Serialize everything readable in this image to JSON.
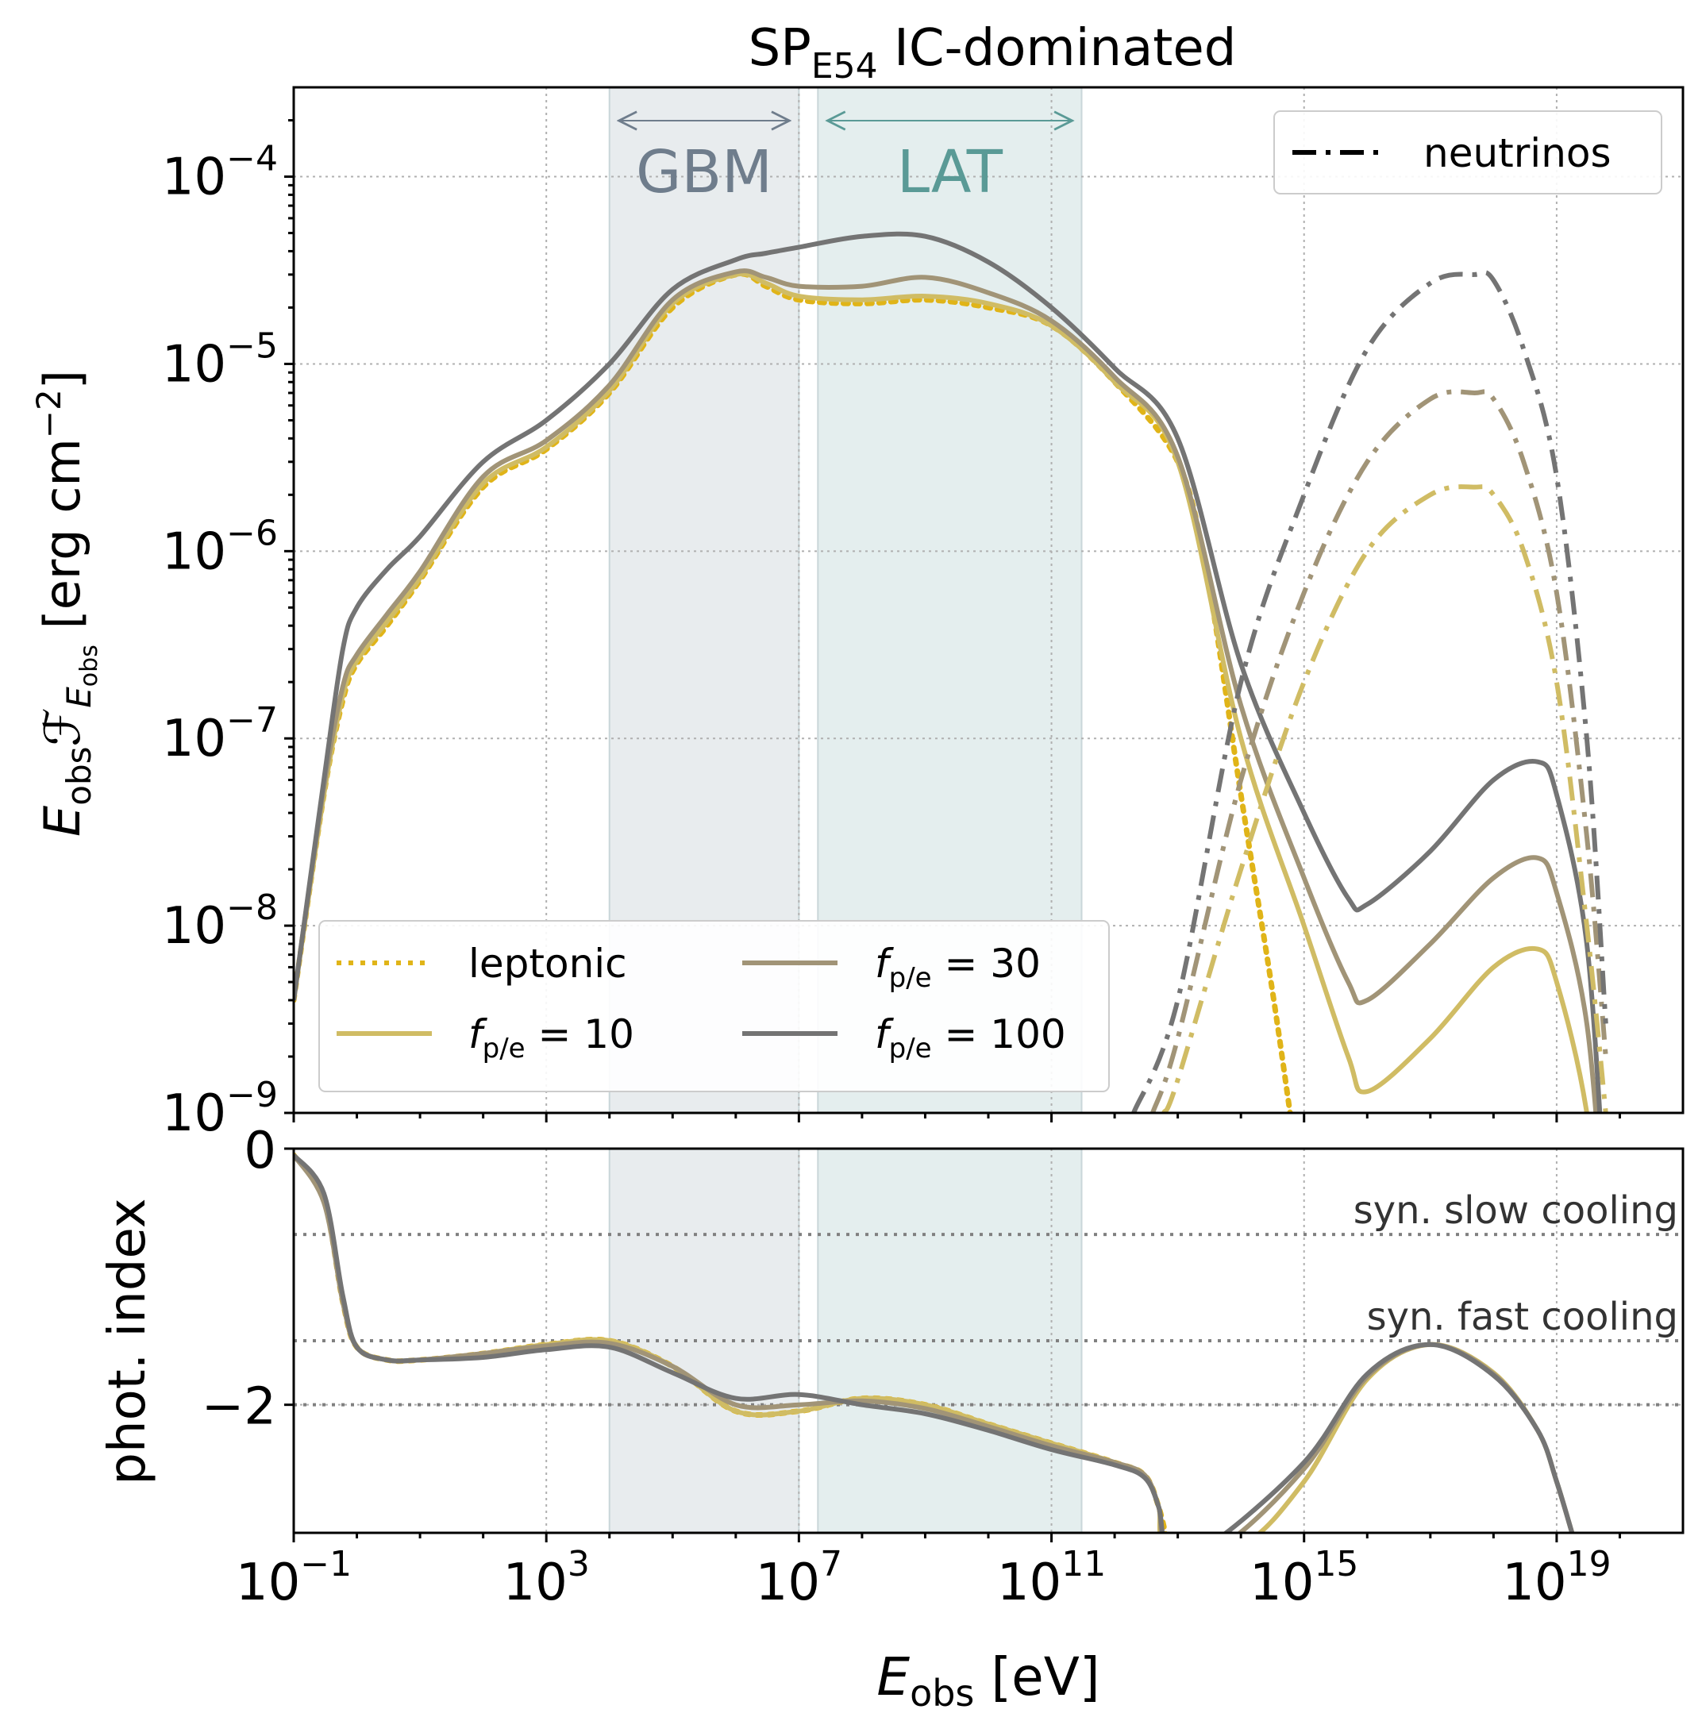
{
  "figure": {
    "title_main": "SP",
    "title_sub": "E54",
    "title_rest": " IC-dominated",
    "top_ylabel_var": "E",
    "top_ylabel_sub": "obs",
    "top_ylabel_var2": "ℱ",
    "top_ylabel_sub2": "E",
    "top_ylabel_sub3": "obs",
    "top_ylabel_units": " [erg cm",
    "top_ylabel_units_exp": "−2",
    "top_ylabel_units_close": "]",
    "bottom_ylabel": "phot. index",
    "xlabel_var": "E",
    "xlabel_sub": "obs",
    "xlabel_units": " [eV]",
    "band_gbm_label": "GBM",
    "band_lat_label": "LAT",
    "ref_slow_label": "syn. slow cooling",
    "ref_fast_label": "syn. fast cooling",
    "legend_neutrinos": "neutrinos",
    "legend_leptonic": "leptonic",
    "legend_fpe_prefix": "f",
    "legend_fpe_sub": "p/e",
    "legend_fpe10": " = 10",
    "legend_fpe30": " = 30",
    "legend_fpe100": " = 100",
    "colors": {
      "leptonic": "#e0b418",
      "fpe10": "#d0bc64",
      "fpe30": "#a19477",
      "fpe100": "#747474",
      "gbm_band": "#e8ecee",
      "lat_band": "#e4eeee",
      "gbm_text": "#6f7d8c",
      "lat_text": "#5a9a96"
    }
  },
  "chart_data": [
    {
      "type": "line",
      "panel": "top",
      "xscale": "log",
      "yscale": "log",
      "xlim": [
        0.1,
        1e+21
      ],
      "ylim": [
        1e-09,
        0.0003
      ],
      "grid": true,
      "legend_placement": [
        "lower-left",
        "top-right"
      ],
      "x_ticks": [
        {
          "base": "10",
          "exp": "−1"
        },
        {
          "base": "10",
          "exp": "3"
        },
        {
          "base": "10",
          "exp": "7"
        },
        {
          "base": "10",
          "exp": "11"
        },
        {
          "base": "10",
          "exp": "15"
        },
        {
          "base": "10",
          "exp": "19"
        }
      ],
      "y_ticks": [
        {
          "base": "10",
          "exp": "−9",
          "value": 1e-09
        },
        {
          "base": "10",
          "exp": "−8",
          "value": 1e-08
        },
        {
          "base": "10",
          "exp": "−7",
          "value": 1e-07
        },
        {
          "base": "10",
          "exp": "−6",
          "value": 1e-06
        },
        {
          "base": "10",
          "exp": "−5",
          "value": 1e-05
        },
        {
          "base": "10",
          "exp": "−4",
          "value": 0.0001
        }
      ],
      "bands": [
        {
          "name": "GBM",
          "x": [
            10000,
            10000000.0
          ]
        },
        {
          "name": "LAT",
          "x": [
            20000000.0,
            300000000000.0
          ]
        }
      ],
      "series": [
        {
          "name": "leptonic",
          "style": "dotted",
          "component": "photons",
          "x": [
            0.1,
            0.3,
            0.6,
            1,
            3,
            10,
            100,
            1000,
            10000,
            100000,
            1000000.0,
            3000000.0,
            10000000.0,
            100000000.0,
            1000000000.0,
            10000000000.0,
            100000000000.0,
            1000000000000.0,
            10000000000000.0,
            30000000000000.0,
            100000000000000.0,
            300000000000000.0,
            600000000000000.0
          ],
          "y": [
            4e-09,
            5e-08,
            1.6e-07,
            2.5e-07,
            4e-07,
            7e-07,
            2.2e-06,
            3.5e-06,
            7e-06,
            2e-05,
            3e-05,
            2.6e-05,
            2.2e-05,
            2.1e-05,
            2.2e-05,
            2e-05,
            1.6e-05,
            8e-06,
            3e-06,
            7e-07,
            5e-08,
            5e-09,
            1e-09
          ]
        },
        {
          "name": "f_p/e = 10",
          "style": "solid",
          "component": "photons",
          "x": [
            0.1,
            0.3,
            0.6,
            1,
            3,
            10,
            100,
            1000,
            10000,
            100000,
            1000000.0,
            3000000.0,
            10000000.0,
            100000000.0,
            1000000000.0,
            10000000000.0,
            100000000000.0,
            1000000000000.0,
            10000000000000.0,
            100000000000000.0,
            1000000000000000.0,
            5000000000000000.0,
            1e+16,
            1e+17,
            1e+18,
            5e+18,
            1e+19,
            3e+19,
            6e+19
          ],
          "y": [
            4e-09,
            5e-08,
            1.7e-07,
            2.6e-07,
            4.2e-07,
            7.2e-07,
            2.3e-06,
            3.6e-06,
            7.2e-06,
            2.1e-05,
            3e-05,
            2.7e-05,
            2.3e-05,
            2.2e-05,
            2.3e-05,
            2.1e-05,
            1.6e-05,
            8e-06,
            3e-06,
            1e-07,
            1e-08,
            2e-09,
            1.3e-09,
            2.5e-09,
            6e-09,
            7.5e-09,
            5e-09,
            1e-09,
            1e-10
          ]
        },
        {
          "name": "f_p/e = 30",
          "style": "solid",
          "component": "photons",
          "x": [
            0.1,
            0.3,
            0.6,
            1,
            3,
            10,
            100,
            1000,
            10000,
            100000,
            1000000.0,
            3000000.0,
            10000000.0,
            100000000.0,
            1000000000.0,
            10000000000.0,
            100000000000.0,
            1000000000000.0,
            10000000000000.0,
            100000000000000.0,
            1000000000000000.0,
            5000000000000000.0,
            1e+16,
            1e+17,
            1e+18,
            5e+18,
            1e+19,
            3e+19,
            6e+19
          ],
          "y": [
            4e-09,
            5.5e-08,
            1.9e-07,
            2.8e-07,
            4.6e-07,
            7.8e-07,
            2.5e-06,
            3.9e-06,
            7.7e-06,
            2.2e-05,
            3.1e-05,
            2.9e-05,
            2.6e-05,
            2.6e-05,
            2.9e-05,
            2.4e-05,
            1.7e-05,
            8.5e-06,
            3.2e-06,
            1.5e-07,
            1.8e-08,
            5e-09,
            4e-09,
            8e-09,
            1.8e-08,
            2.3e-08,
            1.5e-08,
            3e-09,
            2e-10
          ]
        },
        {
          "name": "f_p/e = 100",
          "style": "solid",
          "component": "photons",
          "x": [
            0.1,
            0.3,
            0.6,
            1,
            3,
            10,
            100,
            1000,
            10000,
            100000,
            1000000.0,
            3000000.0,
            10000000.0,
            100000000.0,
            1000000000.0,
            10000000000.0,
            100000000000.0,
            1000000000000.0,
            10000000000000.0,
            100000000000000.0,
            1000000000000000.0,
            5000000000000000.0,
            1e+16,
            1e+17,
            1e+18,
            5e+18,
            1e+19,
            3e+19,
            6e+19
          ],
          "y": [
            4e-09,
            6e-08,
            3e-07,
            5e-07,
            8e-07,
            1.2e-06,
            3e-06,
            5e-06,
            1e-05,
            2.5e-05,
            3.6e-05,
            3.9e-05,
            4.2e-05,
            4.8e-05,
            4.8e-05,
            3.5e-05,
            2e-05,
            9.5e-06,
            4e-06,
            2.5e-07,
            4e-08,
            1.4e-08,
            1.3e-08,
            2.5e-08,
            6e-08,
            7.5e-08,
            5e-08,
            8e-09,
            3e-10
          ]
        },
        {
          "name": "f_p/e = 10 neutrinos",
          "style": "dashdot",
          "component": "neutrinos",
          "x": [
            6000000000000.0,
            10000000000000.0,
            100000000000000.0,
            1000000000000000.0,
            1e+16,
            1e+17,
            5e+17,
            1e+18,
            3e+18,
            1e+19,
            3e+19,
            6e+19
          ],
          "y": [
            1e-09,
            1.5e-09,
            2e-08,
            2e-07,
            1e-06,
            2e-06,
            2.2e-06,
            2e-06,
            1e-06,
            2e-07,
            1e-08,
            1e-09
          ]
        },
        {
          "name": "f_p/e = 30 neutrinos",
          "style": "dashdot",
          "component": "neutrinos",
          "x": [
            4000000000000.0,
            10000000000000.0,
            100000000000000.0,
            1000000000000000.0,
            1e+16,
            1e+17,
            5e+17,
            1e+18,
            3e+18,
            1e+19,
            3e+19,
            6e+19
          ],
          "y": [
            1e-09,
            2.5e-09,
            6e-08,
            6e-07,
            3e-06,
            6.5e-06,
            7e-06,
            6.5e-06,
            3e-06,
            6e-07,
            3e-08,
            2e-09
          ]
        },
        {
          "name": "f_p/e = 100 neutrinos",
          "style": "dashdot",
          "component": "neutrinos",
          "x": [
            2000000000000.0,
            10000000000000.0,
            100000000000000.0,
            1000000000000000.0,
            1e+16,
            1e+17,
            5e+17,
            1e+18,
            3e+18,
            1e+19,
            3e+19,
            6e+19
          ],
          "y": [
            1e-09,
            4e-09,
            2e-07,
            2e-06,
            1.2e-05,
            2.7e-05,
            3e-05,
            2.8e-05,
            1.2e-05,
            2.5e-06,
            1e-07,
            3e-09
          ]
        }
      ]
    },
    {
      "type": "line",
      "panel": "bottom",
      "xscale": "log",
      "yscale": "linear",
      "xlim": [
        0.1,
        1e+21
      ],
      "ylim": [
        -3,
        0
      ],
      "grid": true,
      "y_ticks": [
        {
          "label": "0",
          "value": 0
        },
        {
          "label": "−2",
          "value": -2
        }
      ],
      "reference_lines": [
        {
          "name": "syn. slow cooling",
          "y": -0.67
        },
        {
          "name": "syn. fast cooling",
          "y": -1.5
        },
        {
          "name": "",
          "y": -2
        }
      ],
      "series": [
        {
          "name": "leptonic",
          "style": "dotted",
          "x": [
            0.1,
            0.3,
            0.6,
            1,
            3,
            10,
            100,
            1000,
            10000,
            100000,
            1000000.0,
            10000000.0,
            100000000.0,
            1000000000.0,
            10000000000.0,
            100000000000.0,
            1000000000000.0,
            3000000000000.0,
            5000000000000.0,
            7000000000000.0
          ],
          "y": [
            -0.05,
            -0.4,
            -1.2,
            -1.55,
            -1.65,
            -1.65,
            -1.6,
            -1.53,
            -1.5,
            -1.7,
            -2.05,
            -2.05,
            -1.95,
            -2.0,
            -2.15,
            -2.3,
            -2.45,
            -2.55,
            -2.8,
            -3.1
          ]
        },
        {
          "name": "f_p/e = 10",
          "style": "solid",
          "x": [
            0.1,
            0.3,
            0.6,
            1,
            3,
            10,
            100,
            1000,
            10000,
            100000,
            1000000.0,
            10000000.0,
            100000000.0,
            1000000000.0,
            10000000000.0,
            100000000000.0,
            1000000000000.0,
            3000000000000.0,
            5000000000000.0,
            7000000000000.0,
            100000000000000.0,
            1000000000000000.0,
            1e+16,
            1e+17,
            1e+18,
            5e+18,
            1e+19,
            2e+19
          ],
          "y": [
            -0.05,
            -0.4,
            -1.2,
            -1.55,
            -1.65,
            -1.65,
            -1.6,
            -1.53,
            -1.5,
            -1.7,
            -2.05,
            -2.05,
            -1.95,
            -2.0,
            -2.15,
            -2.3,
            -2.45,
            -2.55,
            -2.8,
            -3.1,
            -3.1,
            -2.6,
            -1.8,
            -1.53,
            -1.75,
            -2.2,
            -2.6,
            -3.1
          ]
        },
        {
          "name": "f_p/e = 30",
          "style": "solid",
          "x": [
            0.1,
            0.3,
            0.6,
            1,
            3,
            10,
            100,
            1000,
            10000,
            100000,
            1000000.0,
            10000000.0,
            100000000.0,
            1000000000.0,
            10000000000.0,
            100000000000.0,
            1000000000000.0,
            3000000000000.0,
            5000000000000.0,
            7000000000000.0,
            50000000000000.0,
            1000000000000000.0,
            1e+16,
            1e+17,
            1e+18,
            5e+18,
            1e+19,
            2e+19
          ],
          "y": [
            -0.05,
            -0.42,
            -1.2,
            -1.55,
            -1.65,
            -1.65,
            -1.6,
            -1.54,
            -1.52,
            -1.7,
            -2.0,
            -2.0,
            -1.97,
            -2.03,
            -2.17,
            -2.32,
            -2.45,
            -2.55,
            -2.8,
            -3.1,
            -3.1,
            -2.5,
            -1.78,
            -1.53,
            -1.76,
            -2.2,
            -2.6,
            -3.1
          ]
        },
        {
          "name": "f_p/e = 100",
          "style": "solid",
          "x": [
            0.1,
            0.3,
            0.6,
            1,
            3,
            10,
            100,
            1000,
            10000,
            100000,
            1000000.0,
            10000000.0,
            100000000.0,
            1000000000.0,
            10000000000.0,
            100000000000.0,
            1000000000000.0,
            3000000000000.0,
            5000000000000.0,
            7000000000000.0,
            30000000000000.0,
            1000000000000000.0,
            1e+16,
            1e+17,
            1e+18,
            5e+18,
            1e+19,
            2e+19
          ],
          "y": [
            -0.05,
            -0.35,
            -1.15,
            -1.55,
            -1.65,
            -1.65,
            -1.63,
            -1.57,
            -1.55,
            -1.75,
            -1.95,
            -1.92,
            -2.0,
            -2.07,
            -2.2,
            -2.35,
            -2.47,
            -2.57,
            -2.8,
            -3.1,
            -3.1,
            -2.45,
            -1.76,
            -1.53,
            -1.77,
            -2.2,
            -2.6,
            -3.1
          ]
        }
      ]
    }
  ]
}
